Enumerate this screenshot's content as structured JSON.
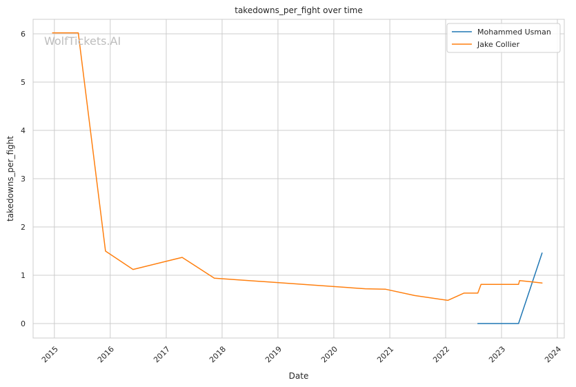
{
  "chart_data": {
    "type": "line",
    "title": "takedowns_per_fight over time",
    "xlabel": "Date",
    "ylabel": "takedowns_per_fight",
    "watermark": "WolfTickets.AI",
    "x_ticks": [
      "2015",
      "2016",
      "2017",
      "2018",
      "2019",
      "2020",
      "2021",
      "2022",
      "2023",
      "2024"
    ],
    "y_ticks": [
      0,
      1,
      2,
      3,
      4,
      5,
      6
    ],
    "xlim": [
      "2014-08-15",
      "2024-02-15"
    ],
    "ylim": [
      -0.3,
      6.3
    ],
    "grid": true,
    "legend_position": "top-right",
    "colors": {
      "Mohammed Usman": "#1f77b4",
      "Jake Collier": "#ff7f0e"
    },
    "series": [
      {
        "name": "Mohammed Usman",
        "points": [
          [
            "2022-07-30",
            0.0
          ],
          [
            "2023-04-22",
            0.0
          ],
          [
            "2023-09-23",
            1.46
          ]
        ]
      },
      {
        "name": "Jake Collier",
        "points": [
          [
            "2014-12-20",
            6.02
          ],
          [
            "2015-06-06",
            6.02
          ],
          [
            "2015-12-01",
            1.5
          ],
          [
            "2016-05-29",
            1.12
          ],
          [
            "2017-04-15",
            1.37
          ],
          [
            "2017-11-11",
            0.94
          ],
          [
            "2020-07-25",
            0.72
          ],
          [
            "2020-12-05",
            0.71
          ],
          [
            "2021-06-12",
            0.58
          ],
          [
            "2022-01-15",
            0.48
          ],
          [
            "2022-04-30",
            0.63
          ],
          [
            "2022-07-30",
            0.63
          ],
          [
            "2022-08-20",
            0.81
          ],
          [
            "2023-04-22",
            0.81
          ],
          [
            "2023-04-29",
            0.89
          ],
          [
            "2023-09-23",
            0.84
          ]
        ]
      }
    ]
  }
}
